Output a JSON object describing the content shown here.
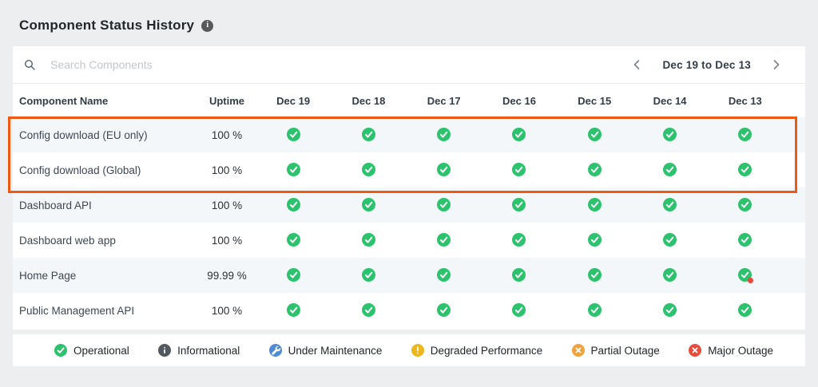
{
  "page": {
    "title": "Component Status History"
  },
  "toolbar": {
    "search_placeholder": "Search Components",
    "date_range": "Dec 19 to Dec 13"
  },
  "table": {
    "columns": [
      "Component Name",
      "Uptime",
      "Dec 19",
      "Dec 18",
      "Dec 17",
      "Dec 16",
      "Dec 15",
      "Dec 14",
      "Dec 13"
    ],
    "rows": [
      {
        "name": "Config download (EU only)",
        "uptime": "100 %",
        "highlighted": true,
        "statuses": [
          "operational",
          "operational",
          "operational",
          "operational",
          "operational",
          "operational",
          "operational"
        ]
      },
      {
        "name": "Config download (Global)",
        "uptime": "100 %",
        "highlighted": true,
        "statuses": [
          "operational",
          "operational",
          "operational",
          "operational",
          "operational",
          "operational",
          "operational"
        ]
      },
      {
        "name": "Dashboard API",
        "uptime": "100 %",
        "highlighted": false,
        "statuses": [
          "operational",
          "operational",
          "operational",
          "operational",
          "operational",
          "operational",
          "operational"
        ]
      },
      {
        "name": "Dashboard web app",
        "uptime": "100 %",
        "highlighted": false,
        "statuses": [
          "operational",
          "operational",
          "operational",
          "operational",
          "operational",
          "operational",
          "operational"
        ]
      },
      {
        "name": "Home Page",
        "uptime": "99.99 %",
        "highlighted": false,
        "statuses": [
          "operational",
          "operational",
          "operational",
          "operational",
          "operational",
          "operational",
          "operational_incident"
        ]
      },
      {
        "name": "Public Management API",
        "uptime": "100 %",
        "highlighted": false,
        "statuses": [
          "operational",
          "operational",
          "operational",
          "operational",
          "operational",
          "operational",
          "operational"
        ]
      }
    ]
  },
  "legend": {
    "items": [
      {
        "label": "Operational",
        "glyph": "check",
        "color": "#2dc36e",
        "icon": "operational-check-icon"
      },
      {
        "label": "Informational",
        "glyph": "i",
        "color": "#53585e",
        "icon": "informational-info-icon"
      },
      {
        "label": "Under Maintenance",
        "glyph": "wrench",
        "color": "#4f8bd6",
        "icon": "under-maintenance-wrench-icon"
      },
      {
        "label": "Degraded Performance",
        "glyph": "exclaim",
        "color": "#ecb61e",
        "icon": "degraded-performance-icon"
      },
      {
        "label": "Partial Outage",
        "glyph": "cross",
        "color": "#f0a33c",
        "icon": "partial-outage-icon"
      },
      {
        "label": "Major Outage",
        "glyph": "cross",
        "color": "#e74c3c",
        "icon": "major-outage-icon"
      }
    ]
  },
  "colors": {
    "operational": "#2dc36e",
    "incident_dot": "#e8473a",
    "highlight_box": "#ee5a13",
    "stripe": "#f4f7f9"
  }
}
